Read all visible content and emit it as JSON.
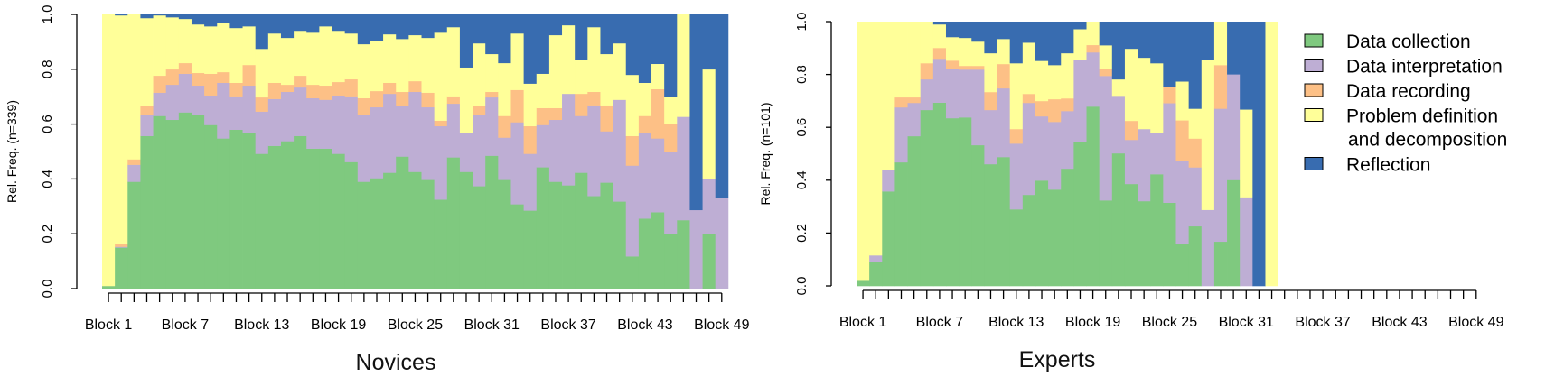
{
  "colors": {
    "Data collection": "#7fc97f",
    "Data interpretation": "#beaed4",
    "Data recording": "#fdc086",
    "Problem definition and decomposition": "#ffff99",
    "Reflection": "#386cb0"
  },
  "legend": [
    {
      "name": "Data collection",
      "lines": [
        "Data collection"
      ]
    },
    {
      "name": "Data interpretation",
      "lines": [
        "Data interpretation"
      ]
    },
    {
      "name": "Data recording",
      "lines": [
        "Data recording"
      ]
    },
    {
      "name": "Problem definition and decomposition",
      "lines": [
        "Problem definition",
        "and decomposition"
      ]
    },
    {
      "name": "Reflection",
      "lines": [
        "Reflection"
      ]
    }
  ],
  "chart_data": [
    {
      "type": "bar",
      "stacked": true,
      "title": "Novices",
      "xlabel": "",
      "ylabel": "Rel. Freq. (n=339)",
      "ylim": [
        0,
        1
      ],
      "yticks": [
        "0.0",
        "0.2",
        "0.4",
        "0.6",
        "0.8",
        "1.0"
      ],
      "n_blocks": 49,
      "xtick_labels": [
        "Block 1",
        "Block 7",
        "Block 13",
        "Block 19",
        "Block 25",
        "Block 31",
        "Block 37",
        "Block 43",
        "Block 49"
      ],
      "series": [
        {
          "name": "Data collection",
          "values": [
            0.01,
            0.15,
            0.39,
            0.557,
            0.63,
            0.616,
            0.643,
            0.633,
            0.597,
            0.548,
            0.58,
            0.57,
            0.492,
            0.521,
            0.538,
            0.557,
            0.511,
            0.511,
            0.492,
            0.462,
            0.39,
            0.403,
            0.423,
            0.482,
            0.426,
            0.397,
            0.325,
            0.479,
            0.426,
            0.374,
            0.485,
            0.397,
            0.308,
            0.285,
            0.443,
            0.39,
            0.377,
            0.423,
            0.338,
            0.387,
            0.318,
            0.118,
            0.256,
            0.279,
            0.2,
            0.25,
            0,
            0.2,
            0
          ]
        },
        {
          "name": "Data interpretation",
          "values": [
            0,
            0.003,
            0.062,
            0.076,
            0.085,
            0.128,
            0.141,
            0.108,
            0.108,
            0.203,
            0.122,
            0.171,
            0.154,
            0.171,
            0.18,
            0.177,
            0.184,
            0.178,
            0.213,
            0.24,
            0.243,
            0.259,
            0.288,
            0.184,
            0.292,
            0.265,
            0.268,
            0.196,
            0.144,
            0.259,
            0.213,
            0.154,
            0.299,
            0.207,
            0.154,
            0.226,
            0.334,
            0.207,
            0.331,
            0.187,
            0.371,
            0.331,
            0.311,
            0.269,
            0.3,
            0.377,
            0.287,
            0.2,
            0.333
          ]
        },
        {
          "name": "Data recording",
          "values": [
            0,
            0.012,
            0.02,
            0.033,
            0.062,
            0.056,
            0.039,
            0.046,
            0.079,
            0.039,
            0.049,
            0.075,
            0.052,
            0.059,
            0.026,
            0.043,
            0.049,
            0.052,
            0.049,
            0.062,
            0.062,
            0.059,
            0.04,
            0.052,
            0.039,
            0.053,
            0.02,
            0.027,
            0,
            0.033,
            0.02,
            0.079,
            0.118,
            0.101,
            0.062,
            0.043,
            0,
            0.081,
            0.049,
            0.095,
            0,
            0.108,
            0.063,
            0.18,
            0.1,
            0,
            0,
            0,
            0
          ]
        },
        {
          "name": "Problem definition and decomposition",
          "values": [
            0.99,
            0.832,
            0.528,
            0.321,
            0.22,
            0.19,
            0.161,
            0.177,
            0.173,
            0.18,
            0.2,
            0.141,
            0.177,
            0.18,
            0.171,
            0.164,
            0.19,
            0.216,
            0.187,
            0.167,
            0.197,
            0.184,
            0.177,
            0.193,
            0.168,
            0.2,
            0.321,
            0.252,
            0.237,
            0.229,
            0.138,
            0.193,
            0.206,
            0.155,
            0.125,
            0.266,
            0.25,
            0.125,
            0.236,
            0.187,
            0.206,
            0.223,
            0.121,
            0.092,
            0.1,
            0.373,
            0,
            0.4,
            0
          ]
        },
        {
          "name": "Reflection",
          "values": [
            0,
            0.003,
            0,
            0.013,
            0.003,
            0.01,
            0.016,
            0.036,
            0.043,
            0.03,
            0.049,
            0.043,
            0.125,
            0.069,
            0.085,
            0.059,
            0.066,
            0.043,
            0.059,
            0.069,
            0.108,
            0.095,
            0.072,
            0.089,
            0.075,
            0.085,
            0.066,
            0.046,
            0.193,
            0.105,
            0.144,
            0.177,
            0.069,
            0.252,
            0.216,
            0.075,
            0.039,
            0.164,
            0.046,
            0.144,
            0.105,
            0.22,
            0.249,
            0.18,
            0.3,
            0,
            0.713,
            0.2,
            0.667
          ]
        }
      ]
    },
    {
      "type": "bar",
      "stacked": true,
      "title": "Experts",
      "xlabel": "",
      "ylabel": "Rel. Freq. (n=101)",
      "ylim": [
        0,
        1
      ],
      "yticks": [
        "0.0",
        "0.2",
        "0.4",
        "0.6",
        "0.8",
        "1.0"
      ],
      "n_blocks": 49,
      "xtick_labels": [
        "Block 1",
        "Block 7",
        "Block 13",
        "Block 19",
        "Block 25",
        "Block 31",
        "Block 37",
        "Block 43",
        "Block 49"
      ],
      "series": [
        {
          "name": "Data collection",
          "values": [
            0.02,
            0.092,
            0.358,
            0.468,
            0.567,
            0.666,
            0.694,
            0.635,
            0.638,
            0.533,
            0.461,
            0.488,
            0.29,
            0.345,
            0.399,
            0.365,
            0.444,
            0.546,
            0.679,
            0.324,
            0.502,
            0.386,
            0.321,
            0.423,
            0.315,
            0.158,
            0.226,
            0,
            0.168,
            0.401,
            0,
            0,
            0
          ]
        },
        {
          "name": "Data interpretation",
          "values": [
            0,
            0.024,
            0.082,
            0.208,
            0.126,
            0.116,
            0.166,
            0.188,
            0.181,
            0.286,
            0.205,
            0.26,
            0.249,
            0.348,
            0.243,
            0.256,
            0.218,
            0.311,
            0.205,
            0.471,
            0.218,
            0.167,
            0.273,
            0.157,
            0.377,
            0.315,
            0.223,
            0.288,
            0.503,
            0.4,
            0.336,
            0,
            0
          ]
        },
        {
          "name": "Data recording",
          "values": [
            0,
            0,
            0,
            0.038,
            0.021,
            0.061,
            0.041,
            0.03,
            0.014,
            0.014,
            0.068,
            0.092,
            0.055,
            0.034,
            0.058,
            0.086,
            0.048,
            0,
            0.028,
            0.028,
            0,
            0.072,
            0,
            0,
            0.061,
            0.154,
            0.109,
            0,
            0.165,
            0,
            0,
            0,
            0
          ]
        },
        {
          "name": "Problem definition and decomposition",
          "values": [
            0.98,
            0.884,
            0.56,
            0.286,
            0.286,
            0.157,
            0.089,
            0.089,
            0.106,
            0.092,
            0.147,
            0.095,
            0.249,
            0.194,
            0.152,
            0.129,
            0.171,
            0.115,
            0.088,
            0.088,
            0.062,
            0.273,
            0.27,
            0.263,
            0,
            0.147,
            0.113,
            0.568,
            0.164,
            0,
            0.332,
            0,
            1
          ]
        },
        {
          "name": "Reflection",
          "values": [
            0,
            0,
            0,
            0,
            0,
            0,
            0.01,
            0.058,
            0.061,
            0.075,
            0.119,
            0.065,
            0.157,
            0.079,
            0.148,
            0.164,
            0.119,
            0.028,
            0,
            0.089,
            0.218,
            0.102,
            0.136,
            0.157,
            0.247,
            0.226,
            0.329,
            0.144,
            0,
            0.199,
            0.332,
            1,
            0
          ]
        }
      ]
    }
  ]
}
